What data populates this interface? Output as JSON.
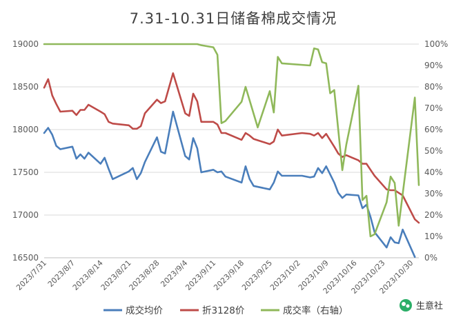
{
  "chart_data": {
    "type": "line",
    "title": "7.31-10.31日储备棉成交情况",
    "x_labels": [
      "2023/7/31",
      "2023/8/7",
      "2023/8/14",
      "2023/8/21",
      "2023/8/28",
      "2023/9/4",
      "2023/9/11",
      "2023/9/18",
      "2023/9/25",
      "2023/10/2",
      "2023/10/9",
      "2023/10/16",
      "2023/10/23",
      "2023/10/30"
    ],
    "ylim_left": [
      16500,
      19000
    ],
    "yticks_left": [
      "16500",
      "17000",
      "17500",
      "18000",
      "18500",
      "19000"
    ],
    "ylim_right": [
      0,
      100
    ],
    "yticks_right": [
      "0%",
      "10%",
      "20%",
      "30%",
      "40%",
      "50%",
      "60%",
      "70%",
      "80%",
      "90%",
      "100%"
    ],
    "grid": true,
    "legend_position": "bottom",
    "series": [
      {
        "name": "成交均价",
        "axis": "left",
        "color": "#4a7ebb",
        "points": [
          [
            0,
            17960
          ],
          [
            1,
            18020
          ],
          [
            2,
            17940
          ],
          [
            3,
            17810
          ],
          [
            4,
            17770
          ],
          [
            7,
            17800
          ],
          [
            8,
            17660
          ],
          [
            9,
            17710
          ],
          [
            10,
            17660
          ],
          [
            11,
            17730
          ],
          [
            14,
            17600
          ],
          [
            15,
            17670
          ],
          [
            16,
            17540
          ],
          [
            17,
            17420
          ],
          [
            21,
            17510
          ],
          [
            22,
            17550
          ],
          [
            23,
            17420
          ],
          [
            24,
            17490
          ],
          [
            25,
            17620
          ],
          [
            28,
            17910
          ],
          [
            29,
            17740
          ],
          [
            30,
            17720
          ],
          [
            32,
            18210
          ],
          [
            35,
            17690
          ],
          [
            36,
            17650
          ],
          [
            37,
            17900
          ],
          [
            38,
            17780
          ],
          [
            39,
            17500
          ],
          [
            42,
            17530
          ],
          [
            43,
            17500
          ],
          [
            44,
            17510
          ],
          [
            45,
            17450
          ],
          [
            49,
            17380
          ],
          [
            50,
            17570
          ],
          [
            51,
            17420
          ],
          [
            52,
            17340
          ],
          [
            56,
            17300
          ],
          [
            57,
            17380
          ],
          [
            58,
            17510
          ],
          [
            59,
            17460
          ],
          [
            64,
            17460
          ],
          [
            66,
            17440
          ],
          [
            67,
            17450
          ],
          [
            68,
            17550
          ],
          [
            69,
            17490
          ],
          [
            70,
            17570
          ],
          [
            72,
            17380
          ],
          [
            73,
            17260
          ],
          [
            74,
            17200
          ],
          [
            75,
            17240
          ],
          [
            78,
            17230
          ],
          [
            79,
            17080
          ],
          [
            80,
            17120
          ],
          [
            81,
            16980
          ],
          [
            82,
            16800
          ],
          [
            85,
            16620
          ],
          [
            86,
            16740
          ],
          [
            87,
            16680
          ],
          [
            88,
            16670
          ],
          [
            89,
            16830
          ],
          [
            92,
            16510
          ]
        ]
      },
      {
        "name": "折3128价",
        "axis": "left",
        "color": "#be4b48",
        "points": [
          [
            0,
            18490
          ],
          [
            1,
            18590
          ],
          [
            2,
            18400
          ],
          [
            3,
            18300
          ],
          [
            4,
            18210
          ],
          [
            7,
            18220
          ],
          [
            8,
            18170
          ],
          [
            9,
            18230
          ],
          [
            10,
            18230
          ],
          [
            11,
            18290
          ],
          [
            14,
            18210
          ],
          [
            15,
            18180
          ],
          [
            16,
            18090
          ],
          [
            17,
            18070
          ],
          [
            21,
            18050
          ],
          [
            22,
            18010
          ],
          [
            23,
            18010
          ],
          [
            24,
            18040
          ],
          [
            25,
            18190
          ],
          [
            28,
            18350
          ],
          [
            29,
            18310
          ],
          [
            30,
            18330
          ],
          [
            32,
            18660
          ],
          [
            35,
            18190
          ],
          [
            36,
            18160
          ],
          [
            37,
            18420
          ],
          [
            38,
            18330
          ],
          [
            39,
            18090
          ],
          [
            42,
            18090
          ],
          [
            43,
            18060
          ],
          [
            44,
            17960
          ],
          [
            45,
            17960
          ],
          [
            49,
            17880
          ],
          [
            50,
            17960
          ],
          [
            51,
            17930
          ],
          [
            52,
            17890
          ],
          [
            56,
            17830
          ],
          [
            57,
            17860
          ],
          [
            58,
            18000
          ],
          [
            59,
            17930
          ],
          [
            64,
            17960
          ],
          [
            66,
            17950
          ],
          [
            67,
            17930
          ],
          [
            68,
            17960
          ],
          [
            69,
            17900
          ],
          [
            70,
            17950
          ],
          [
            72,
            17800
          ],
          [
            73,
            17720
          ],
          [
            74,
            17680
          ],
          [
            75,
            17700
          ],
          [
            78,
            17640
          ],
          [
            79,
            17600
          ],
          [
            80,
            17600
          ],
          [
            81,
            17530
          ],
          [
            82,
            17460
          ],
          [
            85,
            17300
          ],
          [
            86,
            17290
          ],
          [
            87,
            17290
          ],
          [
            88,
            17260
          ],
          [
            89,
            17230
          ],
          [
            92,
            16950
          ],
          [
            93,
            16910
          ]
        ]
      },
      {
        "name": "成交率（右轴）",
        "axis": "right",
        "color": "#8fb85a",
        "points": [
          [
            0,
            100
          ],
          [
            38,
            100
          ],
          [
            39,
            99.5
          ],
          [
            42,
            98.5
          ],
          [
            43,
            95
          ],
          [
            44,
            63
          ],
          [
            45,
            64
          ],
          [
            49,
            73
          ],
          [
            50,
            80
          ],
          [
            53,
            61
          ],
          [
            56,
            78
          ],
          [
            57,
            68
          ],
          [
            58,
            94
          ],
          [
            59,
            91
          ],
          [
            66,
            90
          ],
          [
            67,
            98
          ],
          [
            68,
            97.5
          ],
          [
            69,
            91.5
          ],
          [
            70,
            91
          ],
          [
            71,
            77
          ],
          [
            72,
            78.5
          ],
          [
            74,
            41
          ],
          [
            75,
            53
          ],
          [
            78,
            80.5
          ],
          [
            79,
            27
          ],
          [
            80,
            29
          ],
          [
            81,
            10
          ],
          [
            82,
            11
          ],
          [
            85,
            26
          ],
          [
            86,
            38
          ],
          [
            87,
            35
          ],
          [
            88,
            15
          ],
          [
            92,
            75
          ],
          [
            93,
            34
          ]
        ]
      }
    ]
  },
  "watermark": {
    "icon": "wechat-icon",
    "text": "生意社"
  }
}
